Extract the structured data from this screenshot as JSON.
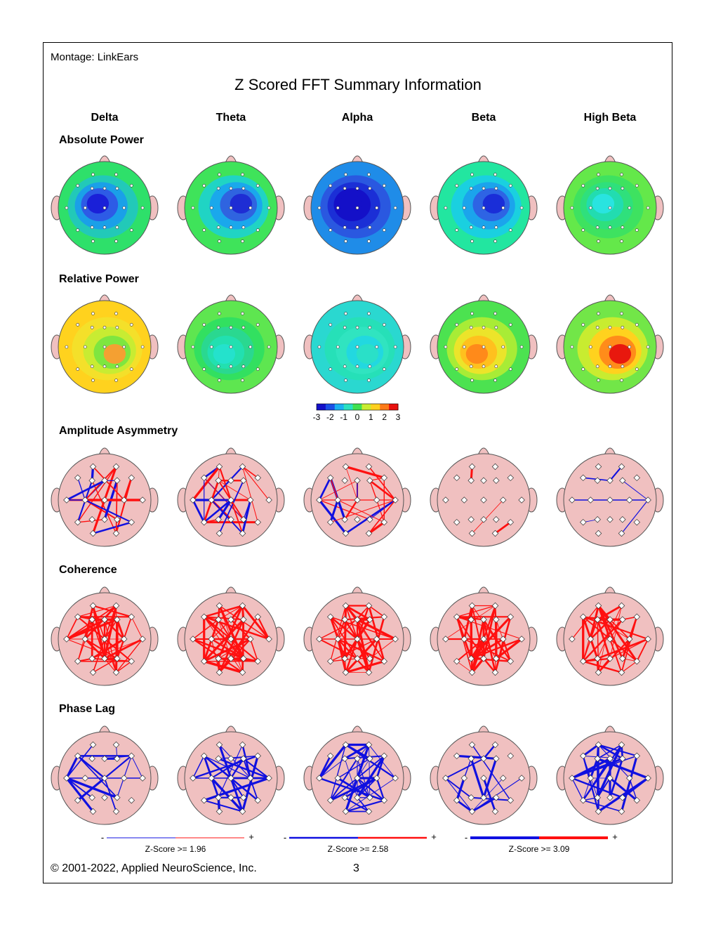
{
  "header": {
    "montage": "Montage:  LinkEars",
    "title": "Z Scored FFT Summary Information"
  },
  "bands": [
    "Delta",
    "Theta",
    "Alpha",
    "Beta",
    "High Beta"
  ],
  "rows": [
    {
      "label": "Absolute Power",
      "kind": "map"
    },
    {
      "label": "Relative Power",
      "kind": "map"
    },
    {
      "label": "Amplitude Asymmetry",
      "kind": "net"
    },
    {
      "label": "Coherence",
      "kind": "net"
    },
    {
      "label": "Phase Lag",
      "kind": "net"
    }
  ],
  "maps": {
    "absolute_power": [
      {
        "band": "Delta",
        "ring_colors": [
          "#2ee06a",
          "#22c9b8",
          "#1aa0e8",
          "#2d5be6",
          "#1a20d8"
        ]
      },
      {
        "band": "Theta",
        "ring_colors": [
          "#3fe35a",
          "#20d4c4",
          "#1aa8ec",
          "#2f64e0",
          "#1e2dd4"
        ]
      },
      {
        "band": "Alpha",
        "ring_colors": [
          "#1f8ce8",
          "#2a58e0",
          "#1b2fd6",
          "#1410c8",
          "#1410c8"
        ]
      },
      {
        "band": "Beta",
        "ring_colors": [
          "#22e6a0",
          "#1ad0e0",
          "#1ba4ec",
          "#2e64e4",
          "#1a2ed8"
        ]
      },
      {
        "band": "High Beta",
        "ring_colors": [
          "#64e84a",
          "#3ee260",
          "#2fe07c",
          "#22dcb0",
          "#29e4e0"
        ]
      }
    ],
    "relative_power": [
      {
        "band": "Delta",
        "ring_colors": [
          "#ffd21e",
          "#f4e02a",
          "#c8ec32",
          "#7ee640",
          "#f4a032"
        ]
      },
      {
        "band": "Theta",
        "ring_colors": [
          "#5ee650",
          "#32e060",
          "#2ad890",
          "#22e0b0",
          "#24e2cc"
        ]
      },
      {
        "band": "Alpha",
        "ring_colors": [
          "#2ad8d0",
          "#26e0b8",
          "#30e4c0",
          "#22d8e0",
          "#2ae0c8"
        ]
      },
      {
        "band": "Beta",
        "ring_colors": [
          "#4ce250",
          "#a8ec36",
          "#ece42a",
          "#ffc01e",
          "#ff8a1a"
        ]
      },
      {
        "band": "High Beta",
        "ring_colors": [
          "#72e648",
          "#c8ec30",
          "#ffd21e",
          "#ff8c1a",
          "#e8180e"
        ]
      }
    ]
  },
  "color_scale": {
    "labels": [
      "-3",
      "-2",
      "-1",
      "0",
      "1",
      "2",
      "3"
    ],
    "colors": [
      "#1410c8",
      "#1a50e6",
      "#1ab0f0",
      "#2ae0c0",
      "#40e050",
      "#c8ec30",
      "#ffd01e",
      "#ff7a18",
      "#e8100e"
    ]
  },
  "connection_legend": [
    {
      "minus": "-",
      "plus": "+",
      "label": "Z-Score >= 1.96"
    },
    {
      "minus": "-",
      "plus": "+",
      "label": "Z-Score >= 2.58"
    },
    {
      "minus": "-",
      "plus": "+",
      "label": "Z-Score >= 3.09"
    }
  ],
  "colors": {
    "head_net": "#f0c0c0",
    "head_stroke": "#555555",
    "positive": "#ff1010",
    "negative": "#1010e0",
    "frame": "#000000"
  },
  "footer": {
    "copyright": "© 2001-2022, Applied NeuroScience, Inc.",
    "page": "3"
  }
}
